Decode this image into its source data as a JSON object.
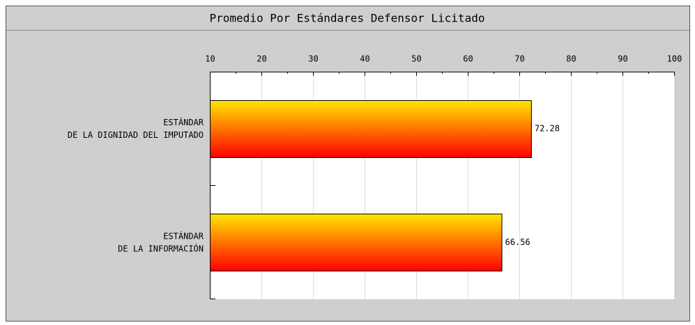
{
  "chart_data": {
    "type": "bar",
    "orientation": "horizontal",
    "title": "Promedio Por Estándares Defensor Licitado",
    "categories": [
      "ESTÁNDAR\nDE LA DIGNIDAD DEL IMPUTADO",
      "ESTÁNDAR\nDE LA INFORMACIÓN"
    ],
    "values": [
      72.28,
      66.56
    ],
    "colors": [
      "#ffe600",
      "#ff0000"
    ],
    "xlim": [
      10,
      100
    ],
    "xticks": [
      10,
      20,
      30,
      40,
      50,
      60,
      70,
      80,
      90,
      100
    ],
    "grid": true
  }
}
